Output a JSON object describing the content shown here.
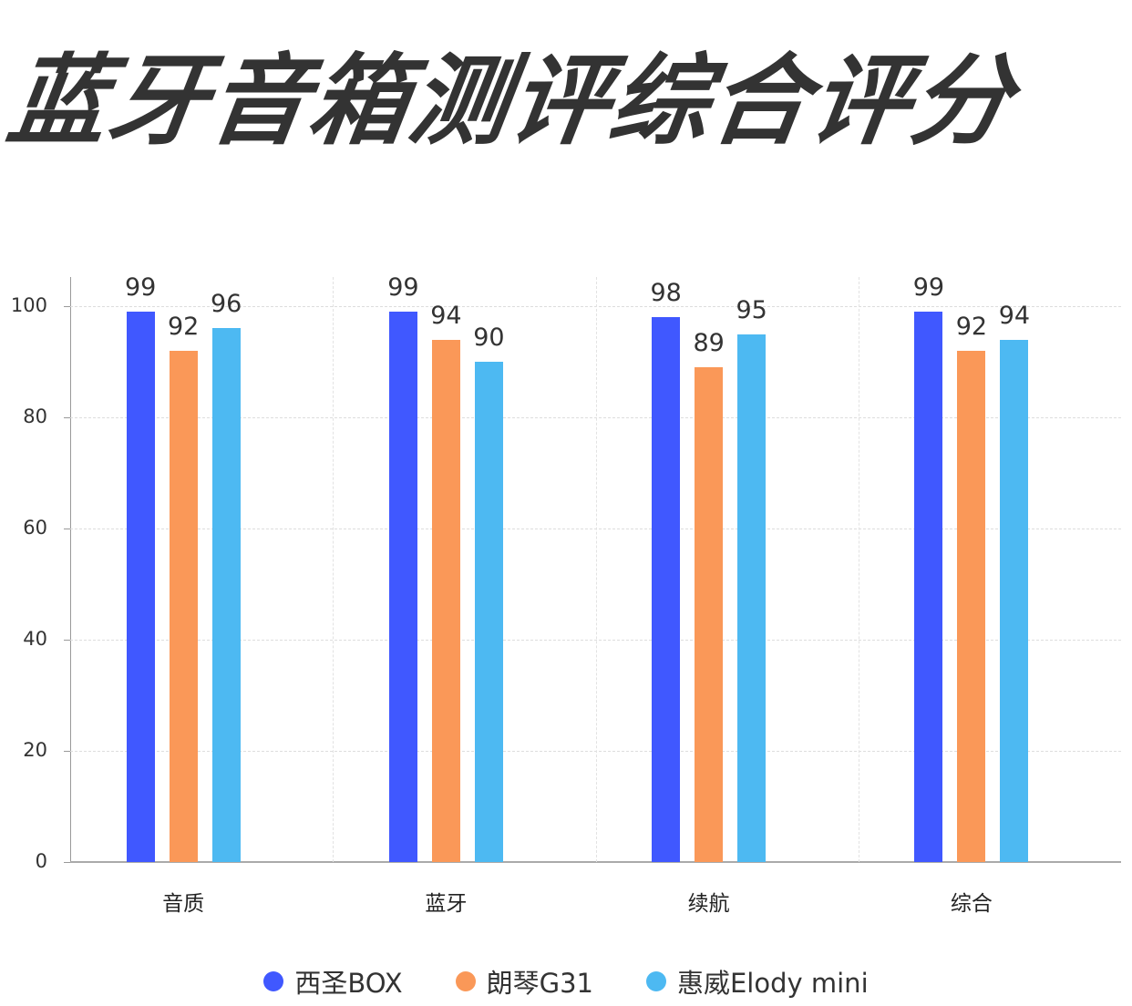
{
  "title": "蓝牙音箱测评综合评分",
  "chart_data": {
    "type": "bar",
    "title": "蓝牙音箱测评综合评分",
    "categories": [
      "音质",
      "蓝牙",
      "续航",
      "综合"
    ],
    "series": [
      {
        "name": "西圣BOX",
        "color": "#4058FF",
        "values": [
          99,
          99,
          98,
          99
        ]
      },
      {
        "name": "朗琴G31",
        "color": "#FA9858",
        "values": [
          92,
          94,
          89,
          92
        ]
      },
      {
        "name": "惠威Elody mini",
        "color": "#4DB9F2",
        "values": [
          96,
          90,
          95,
          94
        ]
      }
    ],
    "xlabel": "",
    "ylabel": "",
    "ylim": [
      0,
      105
    ],
    "yticks": [
      0,
      20,
      40,
      60,
      80,
      100
    ],
    "grid": true,
    "legend_position": "bottom",
    "data_labels": true
  },
  "yticks_text": [
    "0",
    "20",
    "40",
    "60",
    "80",
    "100"
  ],
  "legend": [
    {
      "label": "西圣BOX",
      "color": "#4058FF"
    },
    {
      "label": "朗琴G31",
      "color": "#FA9858"
    },
    {
      "label": "惠威Elody mini",
      "color": "#4DB9F2"
    }
  ]
}
